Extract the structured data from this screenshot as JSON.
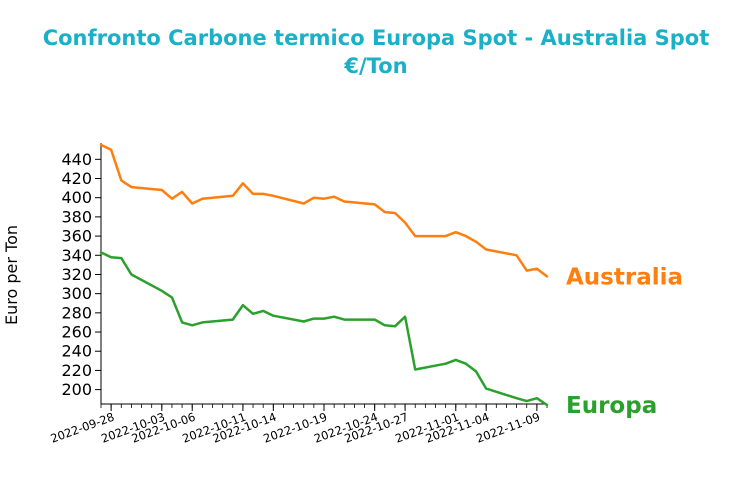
{
  "chart_data": {
    "type": "line",
    "title_line1": "Confronto Carbone termico Europa Spot - Australia Spot",
    "title_line2": "€/Ton",
    "ylabel": "Euro per Ton",
    "xlabel": "",
    "ylim": [
      185,
      457
    ],
    "yticks": [
      200,
      220,
      240,
      260,
      280,
      300,
      320,
      340,
      360,
      380,
      400,
      420,
      440
    ],
    "xticks": [
      "2022-09-28",
      "2022-10-03",
      "2022-10-06",
      "2022-10-11",
      "2022-10-14",
      "2022-10-19",
      "2022-10-24",
      "2022-10-27",
      "2022-11-01",
      "2022-11-04",
      "2022-11-09"
    ],
    "x": [
      "2022-09-27",
      "2022-09-28",
      "2022-09-29",
      "2022-09-30",
      "2022-10-03",
      "2022-10-04",
      "2022-10-05",
      "2022-10-06",
      "2022-10-07",
      "2022-10-10",
      "2022-10-11",
      "2022-10-12",
      "2022-10-13",
      "2022-10-14",
      "2022-10-17",
      "2022-10-18",
      "2022-10-19",
      "2022-10-20",
      "2022-10-21",
      "2022-10-24",
      "2022-10-25",
      "2022-10-26",
      "2022-10-27",
      "2022-10-28",
      "2022-10-31",
      "2022-11-01",
      "2022-11-02",
      "2022-11-03",
      "2022-11-04",
      "2022-11-07",
      "2022-11-08",
      "2022-11-09",
      "2022-11-10"
    ],
    "series": [
      {
        "name": "Australia",
        "color": "#ff7f0e",
        "values": [
          455,
          450,
          418,
          411,
          408,
          399,
          406,
          394,
          399,
          402,
          415,
          404,
          404,
          402,
          394,
          400,
          399,
          401,
          396,
          393,
          385,
          384,
          374,
          360,
          360,
          364,
          360,
          354,
          346,
          340,
          324,
          326,
          318
        ]
      },
      {
        "name": "Europa",
        "color": "#2ca02c",
        "values": [
          343,
          338,
          337,
          320,
          303,
          296,
          270,
          267,
          270,
          273,
          288,
          279,
          282,
          277,
          271,
          274,
          274,
          276,
          273,
          273,
          267,
          266,
          276,
          221,
          227,
          231,
          227,
          219,
          201,
          191,
          188,
          191,
          184
        ]
      }
    ]
  }
}
